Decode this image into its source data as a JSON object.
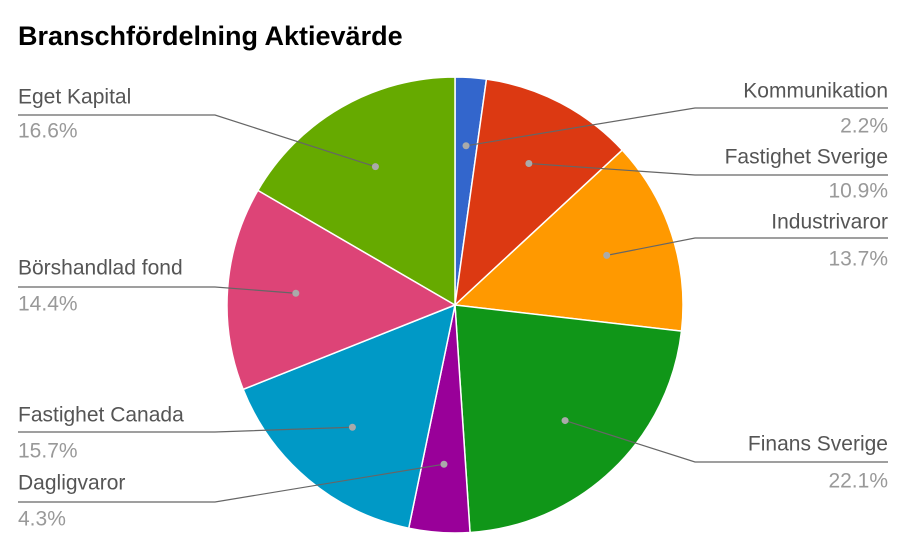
{
  "chart_data": {
    "type": "pie",
    "title": "Branschfördelning Aktievärde",
    "categories": [
      "Kommunikation",
      "Fastighet Sverige",
      "Industrivaror",
      "Finans Sverige",
      "Dagligvaror",
      "Fastighet Canada",
      "Börshandlad fond",
      "Eget Kapital"
    ],
    "values": [
      2.2,
      10.9,
      13.7,
      22.1,
      4.3,
      15.7,
      14.4,
      16.6
    ],
    "value_labels": [
      "2.2%",
      "10.9%",
      "13.7%",
      "22.1%",
      "4.3%",
      "15.7%",
      "14.4%",
      "16.6%"
    ],
    "colors": [
      "#3366cc",
      "#dc3912",
      "#ff9900",
      "#109618",
      "#990099",
      "#0099c6",
      "#dd4477",
      "#66aa00"
    ]
  }
}
